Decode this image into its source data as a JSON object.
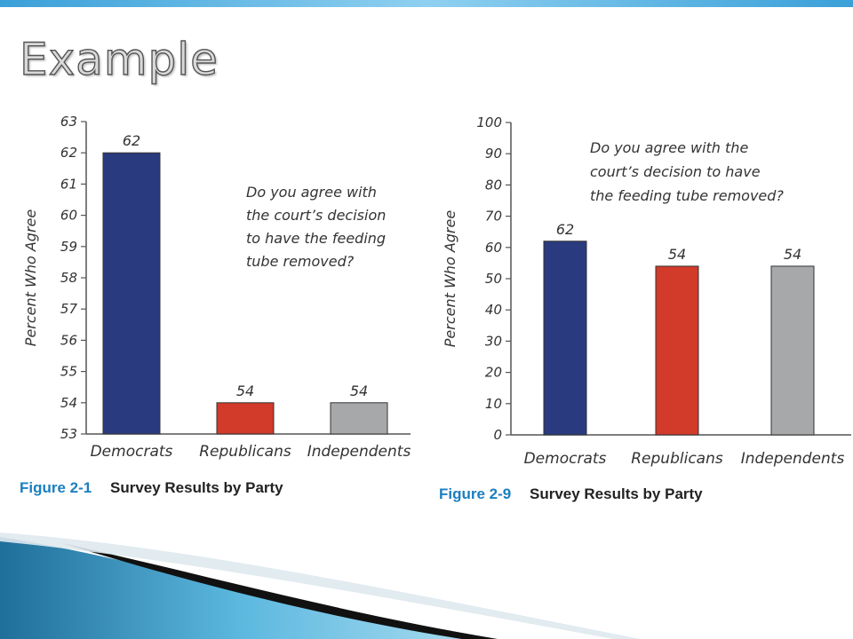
{
  "slide": {
    "title": "Example"
  },
  "colors": {
    "democrats": "#2a3a7e",
    "republicans": "#d23a2a",
    "independents": "#a6a8a9",
    "caption_number": "#1a7fc0",
    "accent": "#3aa0d8"
  },
  "chart_data": [
    {
      "type": "bar",
      "categories": [
        "Democrats",
        "Republicans",
        "Independents"
      ],
      "values": [
        62,
        54,
        54
      ],
      "data_labels": [
        "62",
        "54",
        "54"
      ],
      "ylabel": "Percent Who Agree",
      "ylim": [
        53,
        63
      ],
      "yticks": [
        53,
        54,
        55,
        56,
        57,
        58,
        59,
        60,
        61,
        62,
        63
      ],
      "annotation": [
        "Do you agree with",
        "the court’s decision",
        "to have the feeding",
        "tube removed?"
      ],
      "caption": {
        "number": "Figure 2-1",
        "text": "Survey Results by Party"
      },
      "grid": false
    },
    {
      "type": "bar",
      "categories": [
        "Democrats",
        "Republicans",
        "Independents"
      ],
      "values": [
        62,
        54,
        54
      ],
      "data_labels": [
        "62",
        "54",
        "54"
      ],
      "ylabel": "Percent Who Agree",
      "ylim": [
        0,
        100
      ],
      "yticks": [
        0,
        10,
        20,
        30,
        40,
        50,
        60,
        70,
        80,
        90,
        100
      ],
      "annotation": [
        "Do you agree with the",
        "court’s decision to have",
        "the feeding tube removed?"
      ],
      "caption": {
        "number": "Figure 2-9",
        "text": "Survey Results by Party"
      },
      "grid": false
    }
  ]
}
